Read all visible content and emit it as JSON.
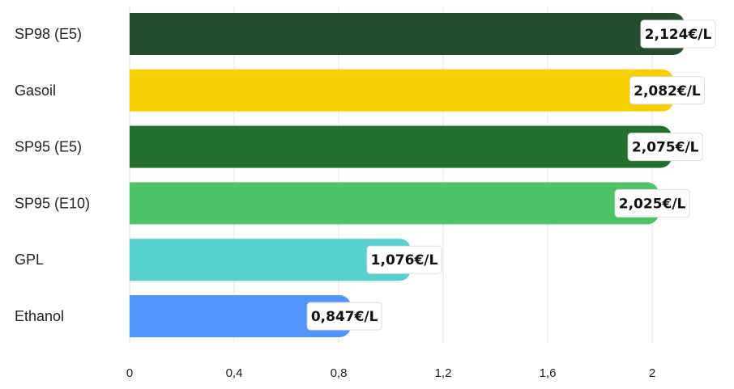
{
  "chart_data": {
    "type": "bar",
    "orientation": "horizontal",
    "categories": [
      "SP98 (E5)",
      "Gasoil",
      "SP95 (E5)",
      "SP95 (E10)",
      "GPL",
      "Ethanol"
    ],
    "values": [
      2.124,
      2.082,
      2.075,
      2.025,
      1.076,
      0.847
    ],
    "value_labels": [
      "2,124€/L",
      "2,082€/L",
      "2,075€/L",
      "2,025€/L",
      "1,076€/L",
      "0,847€/L"
    ],
    "colors": [
      "#234d2e",
      "#f7d000",
      "#23702f",
      "#4dc465",
      "#58cfcf",
      "#5094ff"
    ],
    "xlim": [
      0,
      2.2
    ],
    "xticks": [
      0,
      0.4,
      0.8,
      1.2,
      1.6,
      2
    ],
    "xtick_labels": [
      "0",
      "0,4",
      "0,8",
      "1,2",
      "1,6",
      "2"
    ],
    "grid": true,
    "legend": "none"
  }
}
